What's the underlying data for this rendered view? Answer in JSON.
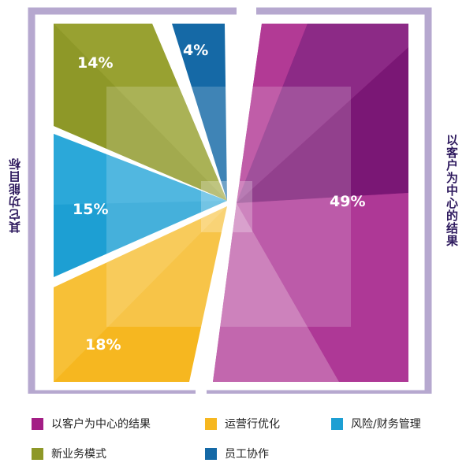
{
  "chart_data": {
    "type": "pie",
    "title": "",
    "labels": {
      "left": "其它功能目标",
      "right": "以客户为中心的结果"
    },
    "slices": [
      {
        "name": "以客户为中心的结果",
        "value": 49,
        "label": "49%",
        "color": "#a31e85"
      },
      {
        "name": "运营行优化",
        "value": 18,
        "label": "18%",
        "color": "#f6b720"
      },
      {
        "name": "风险/财务管理",
        "value": 15,
        "label": "15%",
        "color": "#1d9fd3"
      },
      {
        "name": "新业务模式",
        "value": 14,
        "label": "14%",
        "color": "#8e9828"
      },
      {
        "name": "员工协作",
        "value": 4,
        "label": "4%",
        "color": "#1569a6"
      }
    ],
    "legend": [
      {
        "label": "以客户为中心的结果",
        "color": "#a31e85"
      },
      {
        "label": "运营行优化",
        "color": "#f6b720"
      },
      {
        "label": "风险/财务管理",
        "color": "#1d9fd3"
      },
      {
        "label": "新业务模式",
        "color": "#8e9828"
      },
      {
        "label": "员工协作",
        "color": "#1569a6"
      }
    ],
    "frame_color": "#b6a8cf"
  }
}
